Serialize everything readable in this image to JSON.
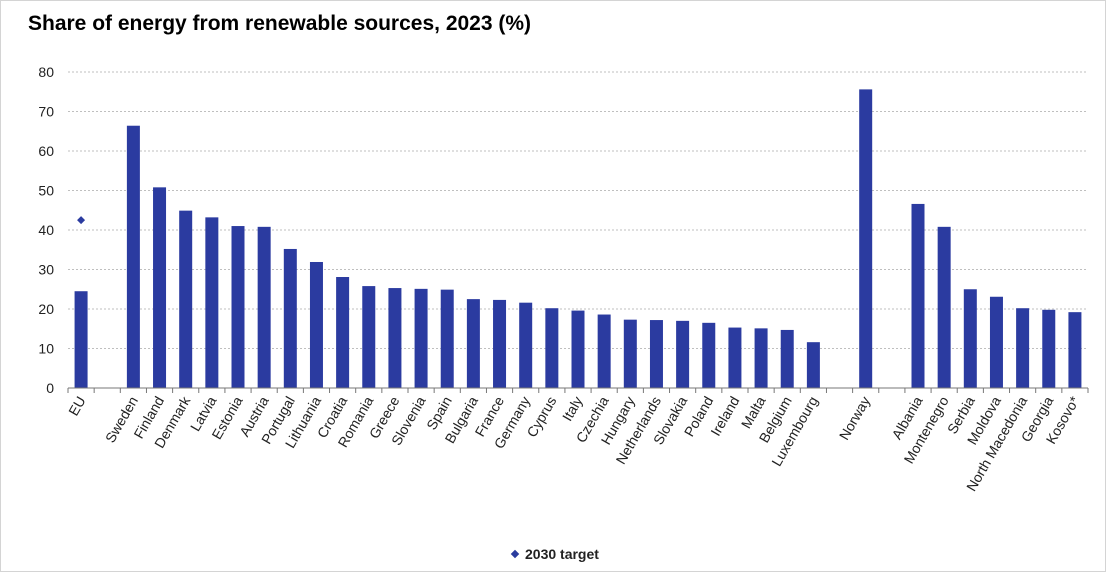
{
  "chart_data": {
    "type": "bar",
    "title": "Share of energy from renewable sources, 2023 (%)",
    "xlabel": "",
    "ylabel": "",
    "ylim": [
      0,
      80
    ],
    "yticks": [
      0,
      10,
      20,
      30,
      40,
      50,
      60,
      70,
      80
    ],
    "grid": true,
    "legend_position": "bottom",
    "colors": {
      "bar": "#2b3ba0",
      "target": "#2b3ba0",
      "grid": "#bfbfbf"
    },
    "categories": [
      "EU",
      "",
      "Sweden",
      "Finland",
      "Denmark",
      "Latvia",
      "Estonia",
      "Austria",
      "Portugal",
      "Lithuania",
      "Croatia",
      "Romania",
      "Greece",
      "Slovenia",
      "Spain",
      "Bulgaria",
      "France",
      "Germany",
      "Cyprus",
      "Italy",
      "Czechia",
      "Hungary",
      "Netherlands",
      "Slovakia",
      "Poland",
      "Ireland",
      "Malta",
      "Belgium",
      "Luxembourg",
      "",
      "Norway",
      "",
      "Albania",
      "Montenegro",
      "Serbia",
      "Moldova",
      "North Macedonia",
      "Georgia",
      "Kosovo*"
    ],
    "series": [
      {
        "values": [
          24.5,
          null,
          66.4,
          50.8,
          44.9,
          43.2,
          41.0,
          40.8,
          35.2,
          31.9,
          28.1,
          25.8,
          25.3,
          25.1,
          24.9,
          22.5,
          22.3,
          21.6,
          20.2,
          19.6,
          18.6,
          17.3,
          17.2,
          17.0,
          16.5,
          15.3,
          15.1,
          14.7,
          11.6,
          null,
          75.6,
          null,
          46.6,
          40.8,
          25.0,
          23.1,
          20.2,
          19.8,
          19.2
        ]
      },
      {
        "name": "2030 target",
        "type": "scatter",
        "marker": "diamond",
        "values": [
          42.5,
          null,
          null,
          null,
          null,
          null,
          null,
          null,
          null,
          null,
          null,
          null,
          null,
          null,
          null,
          null,
          null,
          null,
          null,
          null,
          null,
          null,
          null,
          null,
          null,
          null,
          null,
          null,
          null,
          null,
          null,
          null,
          null,
          null,
          null,
          null,
          null,
          null,
          null
        ]
      }
    ]
  }
}
